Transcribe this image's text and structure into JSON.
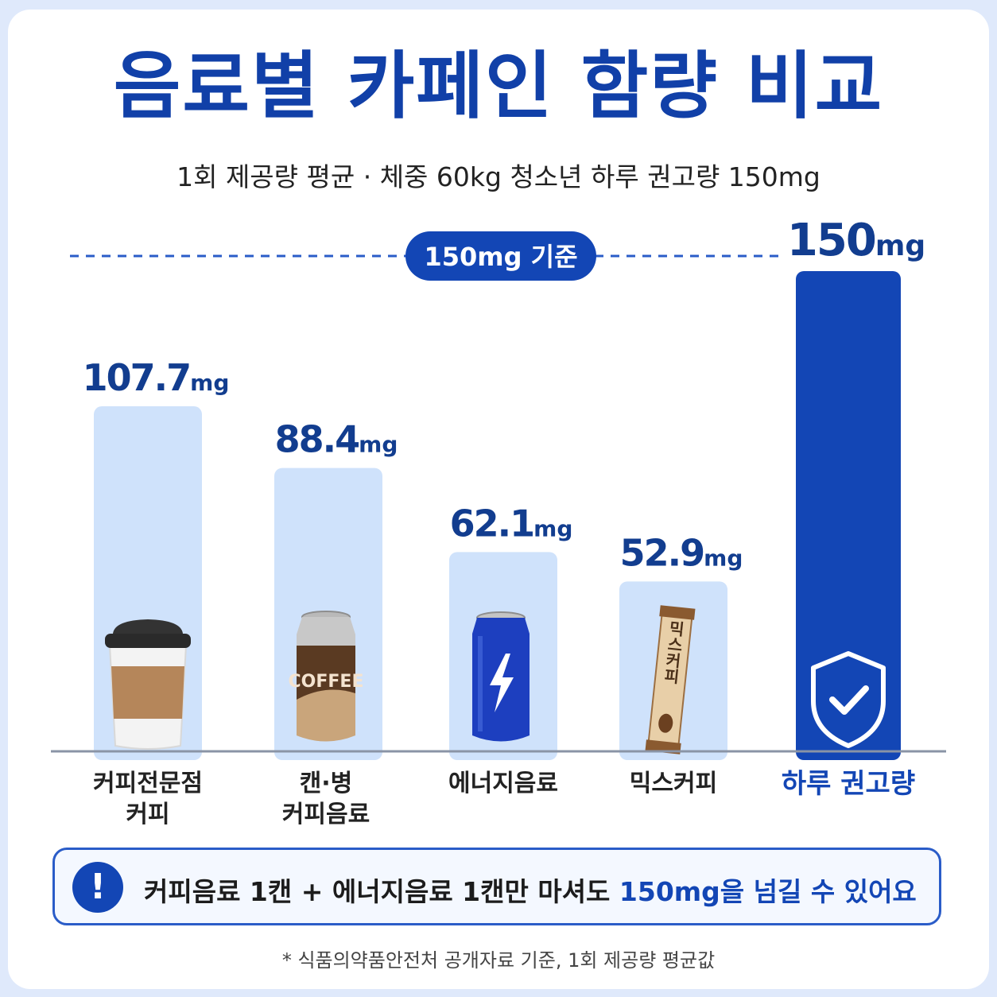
{
  "title": "음료별 카페인 함량 비교",
  "subtitle": "1회 제공량 평균 · 체중 60kg 청소년 하루 권고량 150mg",
  "reference_badge": "150mg 기준",
  "chart_data": {
    "type": "bar",
    "categories": [
      "커피전문점 커피",
      "캔·병 커피음료",
      "에너지음료",
      "믹스커피",
      "하루 권고량"
    ],
    "values": [
      107.7,
      88.4,
      62.1,
      52.9,
      150
    ],
    "value_labels": [
      "107.7",
      "88.4",
      "62.1",
      "52.9",
      "150"
    ],
    "unit": "mg",
    "reference_line": 150,
    "colors": {
      "bar": "#cfe2fb",
      "bar_highlight": "#1346b5",
      "value_text": "#123d8f",
      "highlight_label": "#1346b5"
    },
    "icons": [
      "coffee-cup-icon",
      "coffee-can-icon",
      "energy-drink-can-icon",
      "mix-coffee-stick-icon",
      "shield-check-icon"
    ],
    "can_text": "COFFEE",
    "stick_text": "믹스커피"
  },
  "labels": {
    "cat1_line1": "커피전문점",
    "cat1_line2": "커피",
    "cat2_line1": "캔·병",
    "cat2_line2": "커피음료",
    "cat3": "에너지음료",
    "cat4": "믹스커피",
    "cat5": "하루 권고량"
  },
  "callout": {
    "icon": "!",
    "text_before": "커피음료 1캔 + 에너지음료 1캔만 마셔도 ",
    "text_highlight": "150mg을 넘길 수 있어요"
  },
  "footnote": "* 식품의약품안전처 공개자료 기준, 1회 제공량 평균값"
}
